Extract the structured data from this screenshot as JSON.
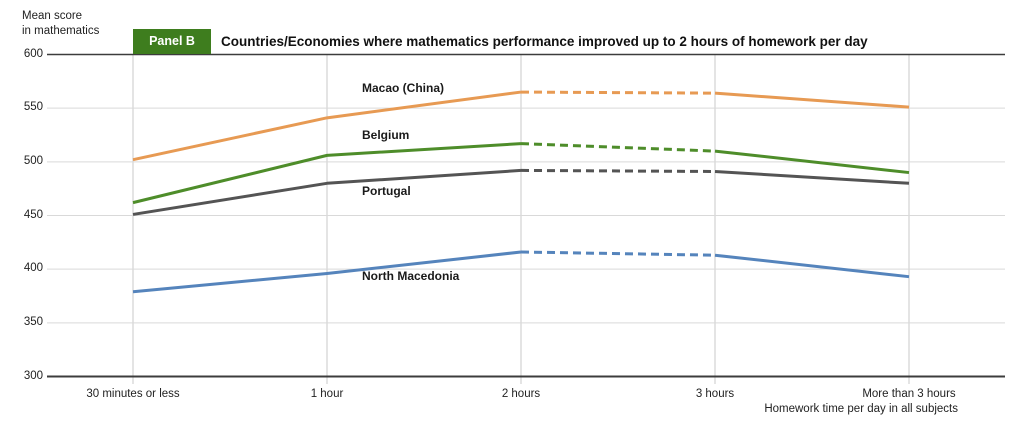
{
  "header": {
    "y_axis_title_line1": "Mean score",
    "y_axis_title_line2": "in mathematics",
    "panel_badge": "Panel B",
    "title": "Countries/Economies where mathematics performance improved up to 2 hours of homework per day"
  },
  "colors": {
    "badge_green": "#3E7D1E",
    "badge_text": "#FFFFFF",
    "macao_orange": "#E79A53",
    "belgium_green": "#4E8D2A",
    "portugal_gray": "#545454",
    "north_macedonia_blue": "#5584BC",
    "grid_light": "#D9D9D9",
    "grid_vertical": "#C9C9C9",
    "axis_dark": "#3C3C3C",
    "text": "#1A1A1A"
  },
  "chart_data": {
    "type": "line",
    "panel": "Panel B",
    "title": "Countries/Economies where mathematics performance improved up to 2 hours of homework per day",
    "categories": [
      "30 minutes or less",
      "1 hour",
      "2 hours",
      "3 hours",
      "More than 3 hours"
    ],
    "series": [
      {
        "name": "Macao (China)",
        "values": [
          502,
          541,
          565,
          564,
          551
        ],
        "color_key": "macao_orange",
        "dashed_between_indices": [
          2,
          3
        ]
      },
      {
        "name": "Belgium",
        "values": [
          462,
          506,
          517,
          510,
          490
        ],
        "color_key": "belgium_green",
        "dashed_between_indices": [
          2,
          3
        ]
      },
      {
        "name": "Portugal",
        "values": [
          451,
          480,
          492,
          491,
          480
        ],
        "color_key": "portugal_gray",
        "dashed_between_indices": [
          2,
          3
        ]
      },
      {
        "name": "North Macedonia",
        "values": [
          379,
          396,
          416,
          413,
          393
        ],
        "color_key": "north_macedonia_blue",
        "dashed_between_indices": [
          2,
          3
        ]
      }
    ],
    "xlabel": "Homework time per day in all subjects",
    "ylabel": "Mean score in mathematics",
    "yticks": [
      600,
      550,
      500,
      450,
      400,
      350,
      300
    ],
    "ylim": [
      300,
      600
    ],
    "grid": true,
    "legend_position": "inline-labels-above-or-below-lines"
  }
}
